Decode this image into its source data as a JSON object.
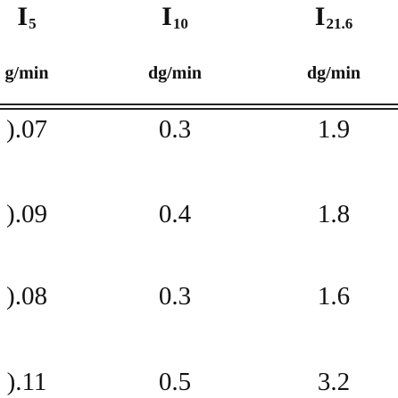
{
  "table": {
    "headers": [
      {
        "symbol": "I",
        "subscript": "5",
        "unit": "g/min"
      },
      {
        "symbol": "I",
        "subscript": "10",
        "unit": "dg/min"
      },
      {
        "symbol": "I",
        "subscript": "21.6",
        "unit": "dg/min"
      }
    ],
    "rows": [
      [
        ").07",
        "0.3",
        "1.9"
      ],
      [
        ").09",
        "0.4",
        "1.8"
      ],
      [
        ").08",
        "0.3",
        "1.6"
      ],
      [
        ").11",
        "0.5",
        "3.2"
      ]
    ]
  }
}
